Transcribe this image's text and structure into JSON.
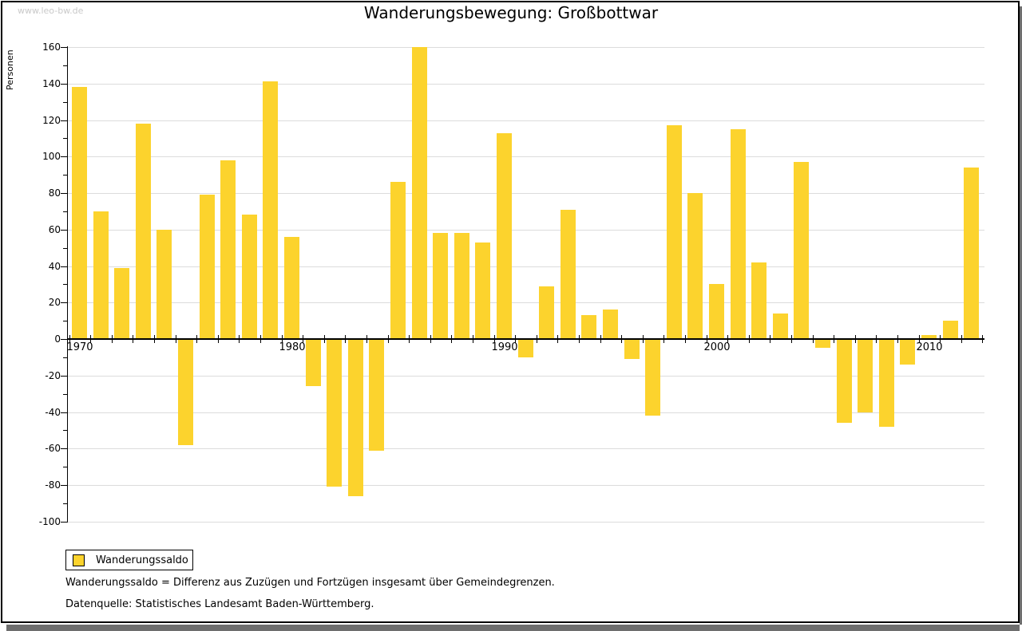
{
  "watermark": "www.leo-bw.de",
  "title": "Wanderungsbewegung: Großbottwar",
  "y_axis": {
    "label": "Personen",
    "min": -100,
    "max": 160,
    "major_step": 20,
    "minor_step": 10,
    "major_tick_labels": [
      160,
      140,
      120,
      100,
      80,
      60,
      40,
      20,
      0,
      -20,
      -40,
      -60,
      -80,
      -100
    ]
  },
  "x_axis": {
    "labeled_years": [
      1970,
      1980,
      1990,
      2000,
      2010
    ]
  },
  "legend": {
    "label": "Wanderungssaldo",
    "swatch_color": "#fcd32d"
  },
  "notes": [
    "Wanderungssaldo = Differenz aus Zuzügen und Fortzügen insgesamt über Gemeindegrenzen.",
    "Datenquelle: Statistisches Landesamt Baden-Württemberg."
  ],
  "colors": {
    "bar": "#fcd32d",
    "gridline": "#dcdcdc",
    "axis": "#000000",
    "watermark": "#c9c9c9",
    "frame_border": "#000000",
    "frame_shadow": "#6e6e6e",
    "background": "#ffffff"
  },
  "chart_data": {
    "type": "bar",
    "title": "Wanderungsbewegung: Großbottwar",
    "xlabel": "",
    "ylabel": "Personen",
    "ylim": [
      -100,
      160
    ],
    "grid": "horizontal, every 20",
    "legend_position": "bottom-left",
    "series_name": "Wanderungssaldo",
    "bar_color": "#fcd32d",
    "categories": [
      1970,
      1971,
      1972,
      1973,
      1974,
      1975,
      1976,
      1977,
      1978,
      1979,
      1980,
      1981,
      1982,
      1983,
      1984,
      1985,
      1986,
      1987,
      1988,
      1989,
      1990,
      1991,
      1992,
      1993,
      1994,
      1995,
      1996,
      1997,
      1998,
      1999,
      2000,
      2001,
      2002,
      2003,
      2004,
      2005,
      2006,
      2007,
      2008,
      2009,
      2010,
      2011,
      2012
    ],
    "values": [
      138,
      70,
      39,
      118,
      60,
      -58,
      79,
      98,
      68,
      141,
      56,
      -26,
      -81,
      -86,
      -61,
      86,
      160,
      58,
      58,
      53,
      113,
      -10,
      29,
      71,
      13,
      16,
      -11,
      -42,
      117,
      80,
      30,
      115,
      42,
      14,
      97,
      -5,
      -46,
      -40,
      -48,
      -14,
      2,
      10,
      94
    ]
  }
}
